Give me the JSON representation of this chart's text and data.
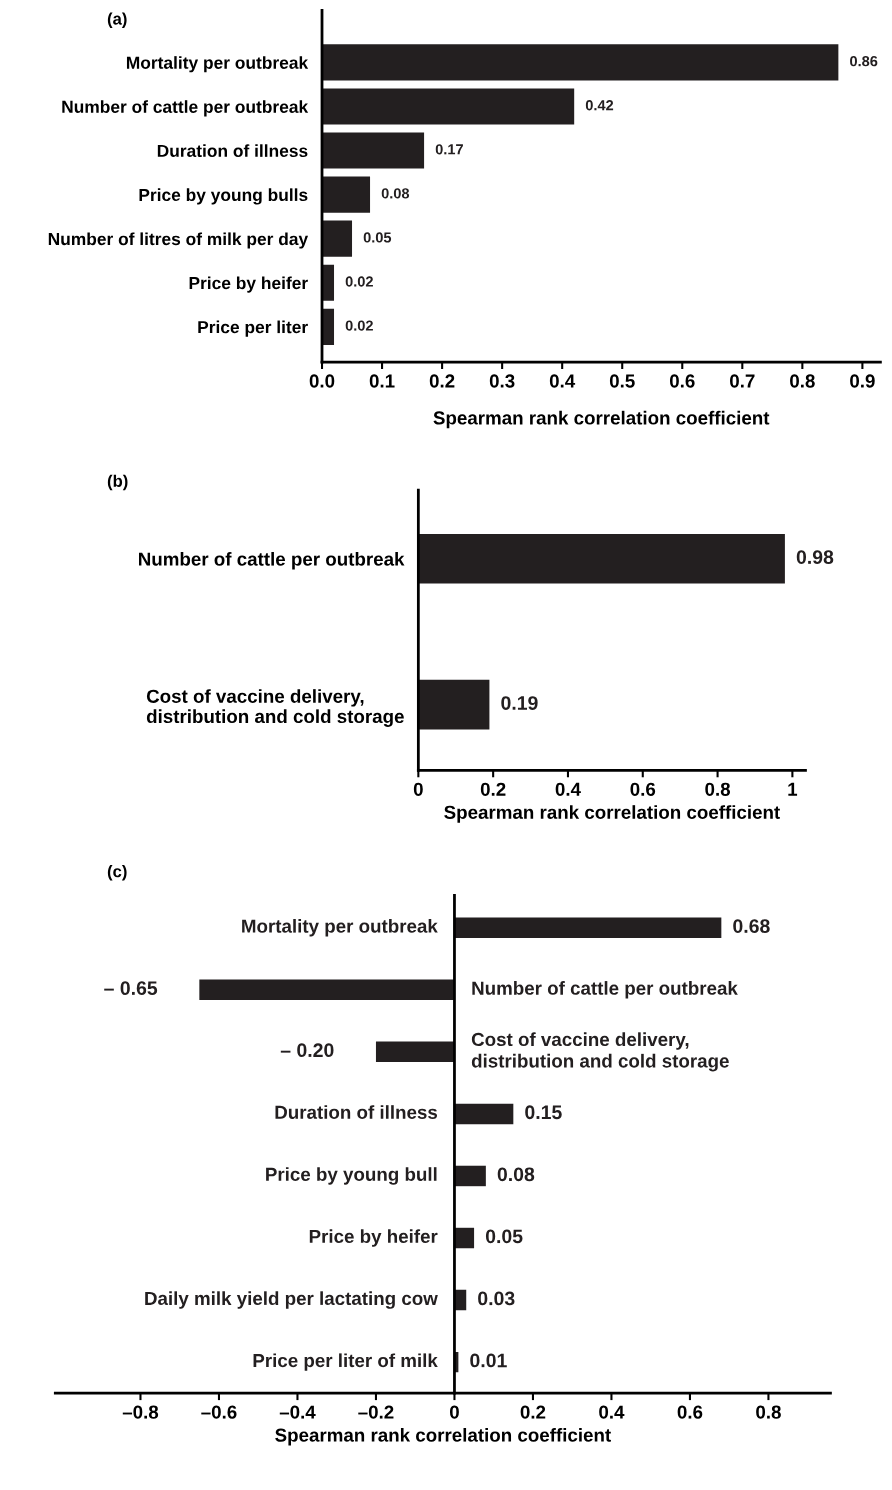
{
  "chart_data": [
    {
      "type": "bar",
      "orientation": "horizontal",
      "title": "(a)",
      "xlabel": "Spearman rank correlation coefficient",
      "categories": [
        "Mortality per outbreak",
        "Number of cattle per outbreak",
        "Duration of illness",
        "Price by young bulls",
        "Number of litres of milk per day",
        "Price by heifer",
        "Price per liter"
      ],
      "values": [
        0.86,
        0.42,
        0.17,
        0.08,
        0.05,
        0.02,
        0.02
      ],
      "value_labels": [
        "0.86",
        "0.42",
        "0.17",
        "0.08",
        "0.05",
        "0.02",
        "0.02"
      ],
      "color": "#231f20",
      "xlim": [
        0,
        0.93
      ],
      "xticks": [
        {
          "value": 0,
          "label": "0.0"
        },
        0.1,
        0.2,
        0.3,
        0.4,
        0.5,
        0.6,
        0.7,
        0.8,
        0.9
      ],
      "grid": false,
      "legend": false
    },
    {
      "type": "bar",
      "orientation": "horizontal",
      "title": "(b)",
      "xlabel": "Spearman rank correlation coefficient",
      "categories": [
        "Number of cattle per outbreak",
        "Cost of vaccine delivery,\ndistribution and cold storage"
      ],
      "values": [
        0.98,
        0.19
      ],
      "value_labels": [
        "0.98",
        "0.19"
      ],
      "color": "#231f20",
      "xlim": [
        0,
        1.035
      ],
      "xticks": [
        0,
        0.2,
        0.4,
        0.6,
        0.8,
        1
      ],
      "grid": false,
      "legend": false
    },
    {
      "type": "bar",
      "orientation": "horizontal",
      "title": "(c)",
      "xlabel": "Spearman rank correlation coefficient",
      "categories": [
        "Mortality per outbreak",
        "Number of cattle per outbreak",
        "Cost of vaccine delivery,\ndistribution and cold storage",
        "Duration of illness",
        "Price by young bull",
        "Price by heifer",
        "Daily milk yield per lactating cow",
        "Price per liter of milk"
      ],
      "values": [
        0.68,
        -0.65,
        -0.2,
        0.15,
        0.08,
        0.05,
        0.03,
        0.01
      ],
      "value_labels": [
        "0.68",
        "– 0.65",
        "– 0.20",
        "0.15",
        "0.08",
        "0.05",
        "0.03",
        "0.01"
      ],
      "color": "#231f20",
      "xlim": [
        -1.017,
        0.958
      ],
      "xticks": [
        {
          "value": -0.8,
          "label": "–0.8"
        },
        {
          "value": -0.6,
          "label": "–0.6"
        },
        {
          "value": -0.4,
          "label": "–0.4"
        },
        {
          "value": -0.2,
          "label": "–0.2"
        },
        0,
        0.2,
        0.4,
        0.6,
        0.8
      ],
      "grid": false,
      "legend": false
    }
  ]
}
